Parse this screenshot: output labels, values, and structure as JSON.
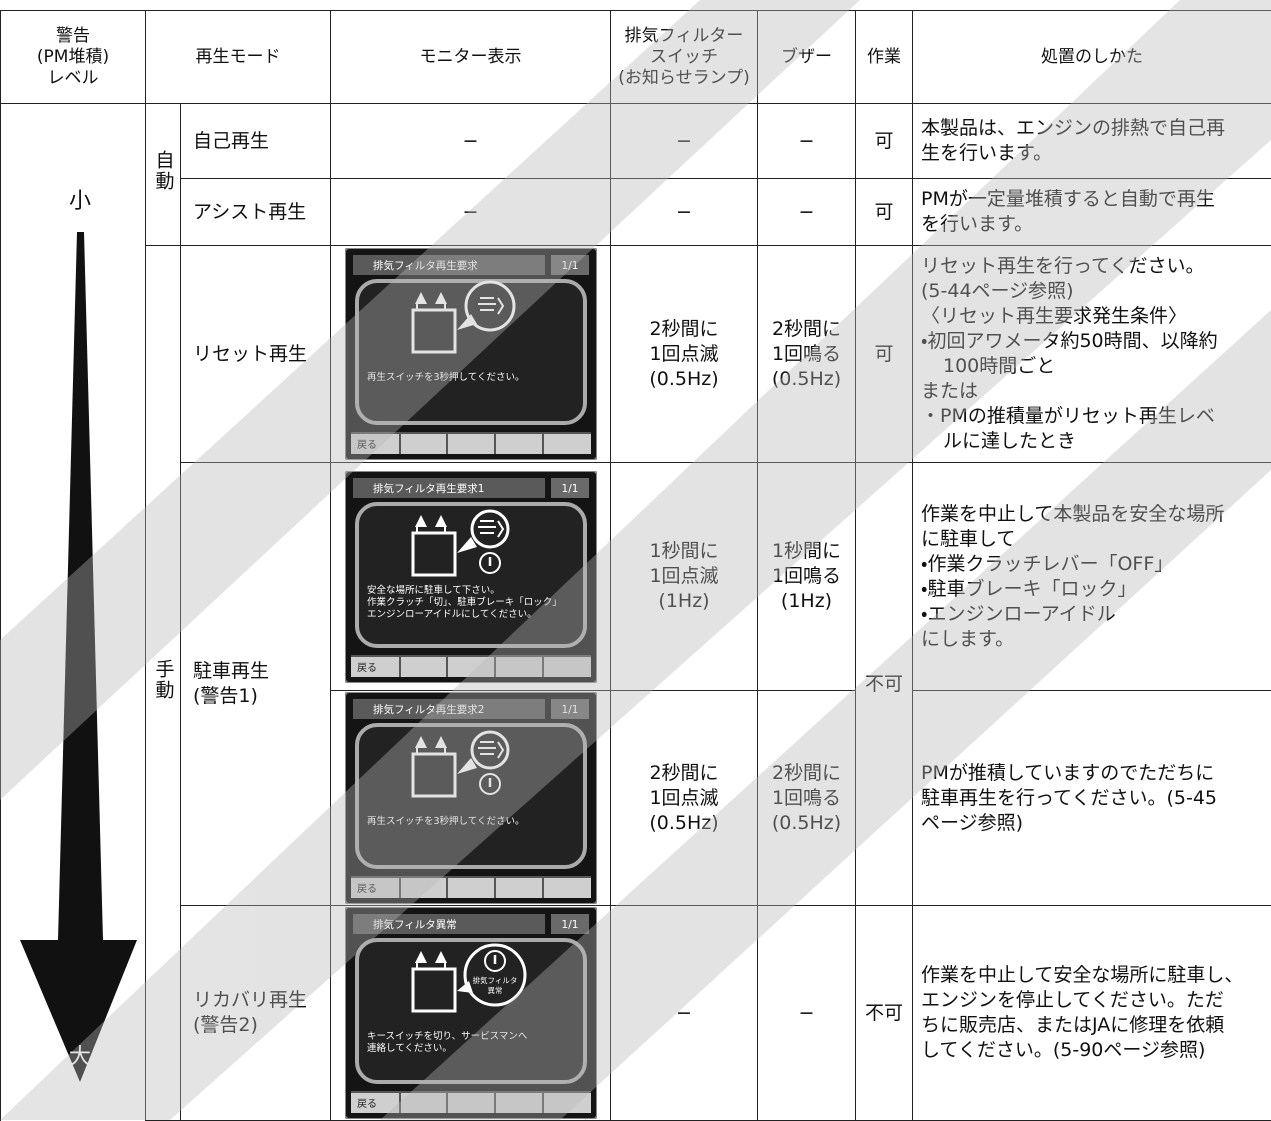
{
  "table": {
    "header": {
      "level": [
        "警告",
        "(PM堆積)",
        "レベル"
      ],
      "mode": "再生モード",
      "monitor": "モニター表示",
      "lamp": [
        "排気フィルター",
        "スイッチ",
        "(お知らせランプ)"
      ],
      "buzzer": "ブザー",
      "work": "作業",
      "action": "処置のしかた"
    },
    "level": {
      "low": "小",
      "high": "大"
    },
    "groups": {
      "auto": "自動",
      "manual": "手動"
    },
    "rows": [
      {
        "mode": [
          "自己再生"
        ],
        "monitor": "−",
        "lamp": [
          "−"
        ],
        "buzzer": [
          "−"
        ],
        "work": "可",
        "action": [
          "本製品は、エンジンの排熱で自己再",
          "生を行います。"
        ]
      },
      {
        "mode": [
          "アシスト再生"
        ],
        "monitor": "−",
        "lamp": [
          "−"
        ],
        "buzzer": [
          "−"
        ],
        "work": "可",
        "action": [
          "PMが一定量堆積すると自動で再生",
          "を行います。"
        ]
      },
      {
        "mode": [
          "リセット再生"
        ],
        "monitor": {
          "title": "排気フィルタ再生要求",
          "page": "1/1",
          "message": [
            "再生スイッチを3秒押してください。"
          ],
          "back": "戻る"
        },
        "lamp": [
          "2秒間に",
          "1回点滅",
          "(0.5Hz)"
        ],
        "buzzer": [
          "2秒間に",
          "1回鳴る",
          "(0.5Hz)"
        ],
        "work": "可",
        "action": [
          "リセット再生を行ってください。",
          "(5-44ページ参照)",
          "〈リセット再生要求発生条件〉",
          "・初回アワメータ約50時間、以降約",
          "100時間ごと",
          "または",
          "・PMの推積量がリセット再生レベ",
          "ルに達したとき"
        ]
      },
      {
        "mode": [
          "駐車再生",
          "(警告1)"
        ],
        "monitor": {
          "title": "排気フィルタ再生要求1",
          "page": "1/1",
          "message": [
            "安全な場所に駐車して下さい。",
            "作業クラッチ「切」、駐車ブレーキ「ロック」",
            "エンジンローアイドルにしてください。"
          ],
          "back": "戻る"
        },
        "lamp": [
          "1秒間に",
          "1回点滅",
          "(1Hz)"
        ],
        "buzzer": [
          "1秒間に",
          "1回鳴る",
          "(1Hz)"
        ],
        "work": "不可",
        "action": [
          "作業を中止して本製品を安全な場所",
          "に駐車して",
          "・作業クラッチレバー「OFF」",
          "・駐車ブレーキ「ロック」",
          "・エンジンローアイドル",
          "にします。"
        ]
      },
      {
        "monitor": {
          "title": "排気フィルタ再生要求2",
          "page": "1/1",
          "message": [
            "再生スイッチを3秒押してください。"
          ],
          "back": "戻る"
        },
        "lamp": [
          "2秒間に",
          "1回点滅",
          "(0.5Hz)"
        ],
        "buzzer": [
          "2秒間に",
          "1回鳴る",
          "(0.5Hz)"
        ],
        "action": [
          "PMが推積していますのでただちに",
          "駐車再生を行ってください。(5-45",
          "ページ参照)"
        ]
      },
      {
        "mode": [
          "リカバリ再生",
          "(警告2)"
        ],
        "monitor": {
          "title": "排気フィルタ異常",
          "page": "1/1",
          "bubble": [
            "排気フィルタ",
            "異常"
          ],
          "message": [
            "キースイッチを切り、サービスマンへ",
            "連絡してください。"
          ],
          "back": "戻る"
        },
        "lamp": [
          "−"
        ],
        "buzzer": [
          "−"
        ],
        "work": "不可",
        "action": [
          "作業を中止して安全な場所に駐車し、",
          "エンジンを停止してください。ただ",
          "ちに販売店、またはJAに修理を依頼",
          "してください。(5-90ページ参照)"
        ]
      }
    ]
  }
}
